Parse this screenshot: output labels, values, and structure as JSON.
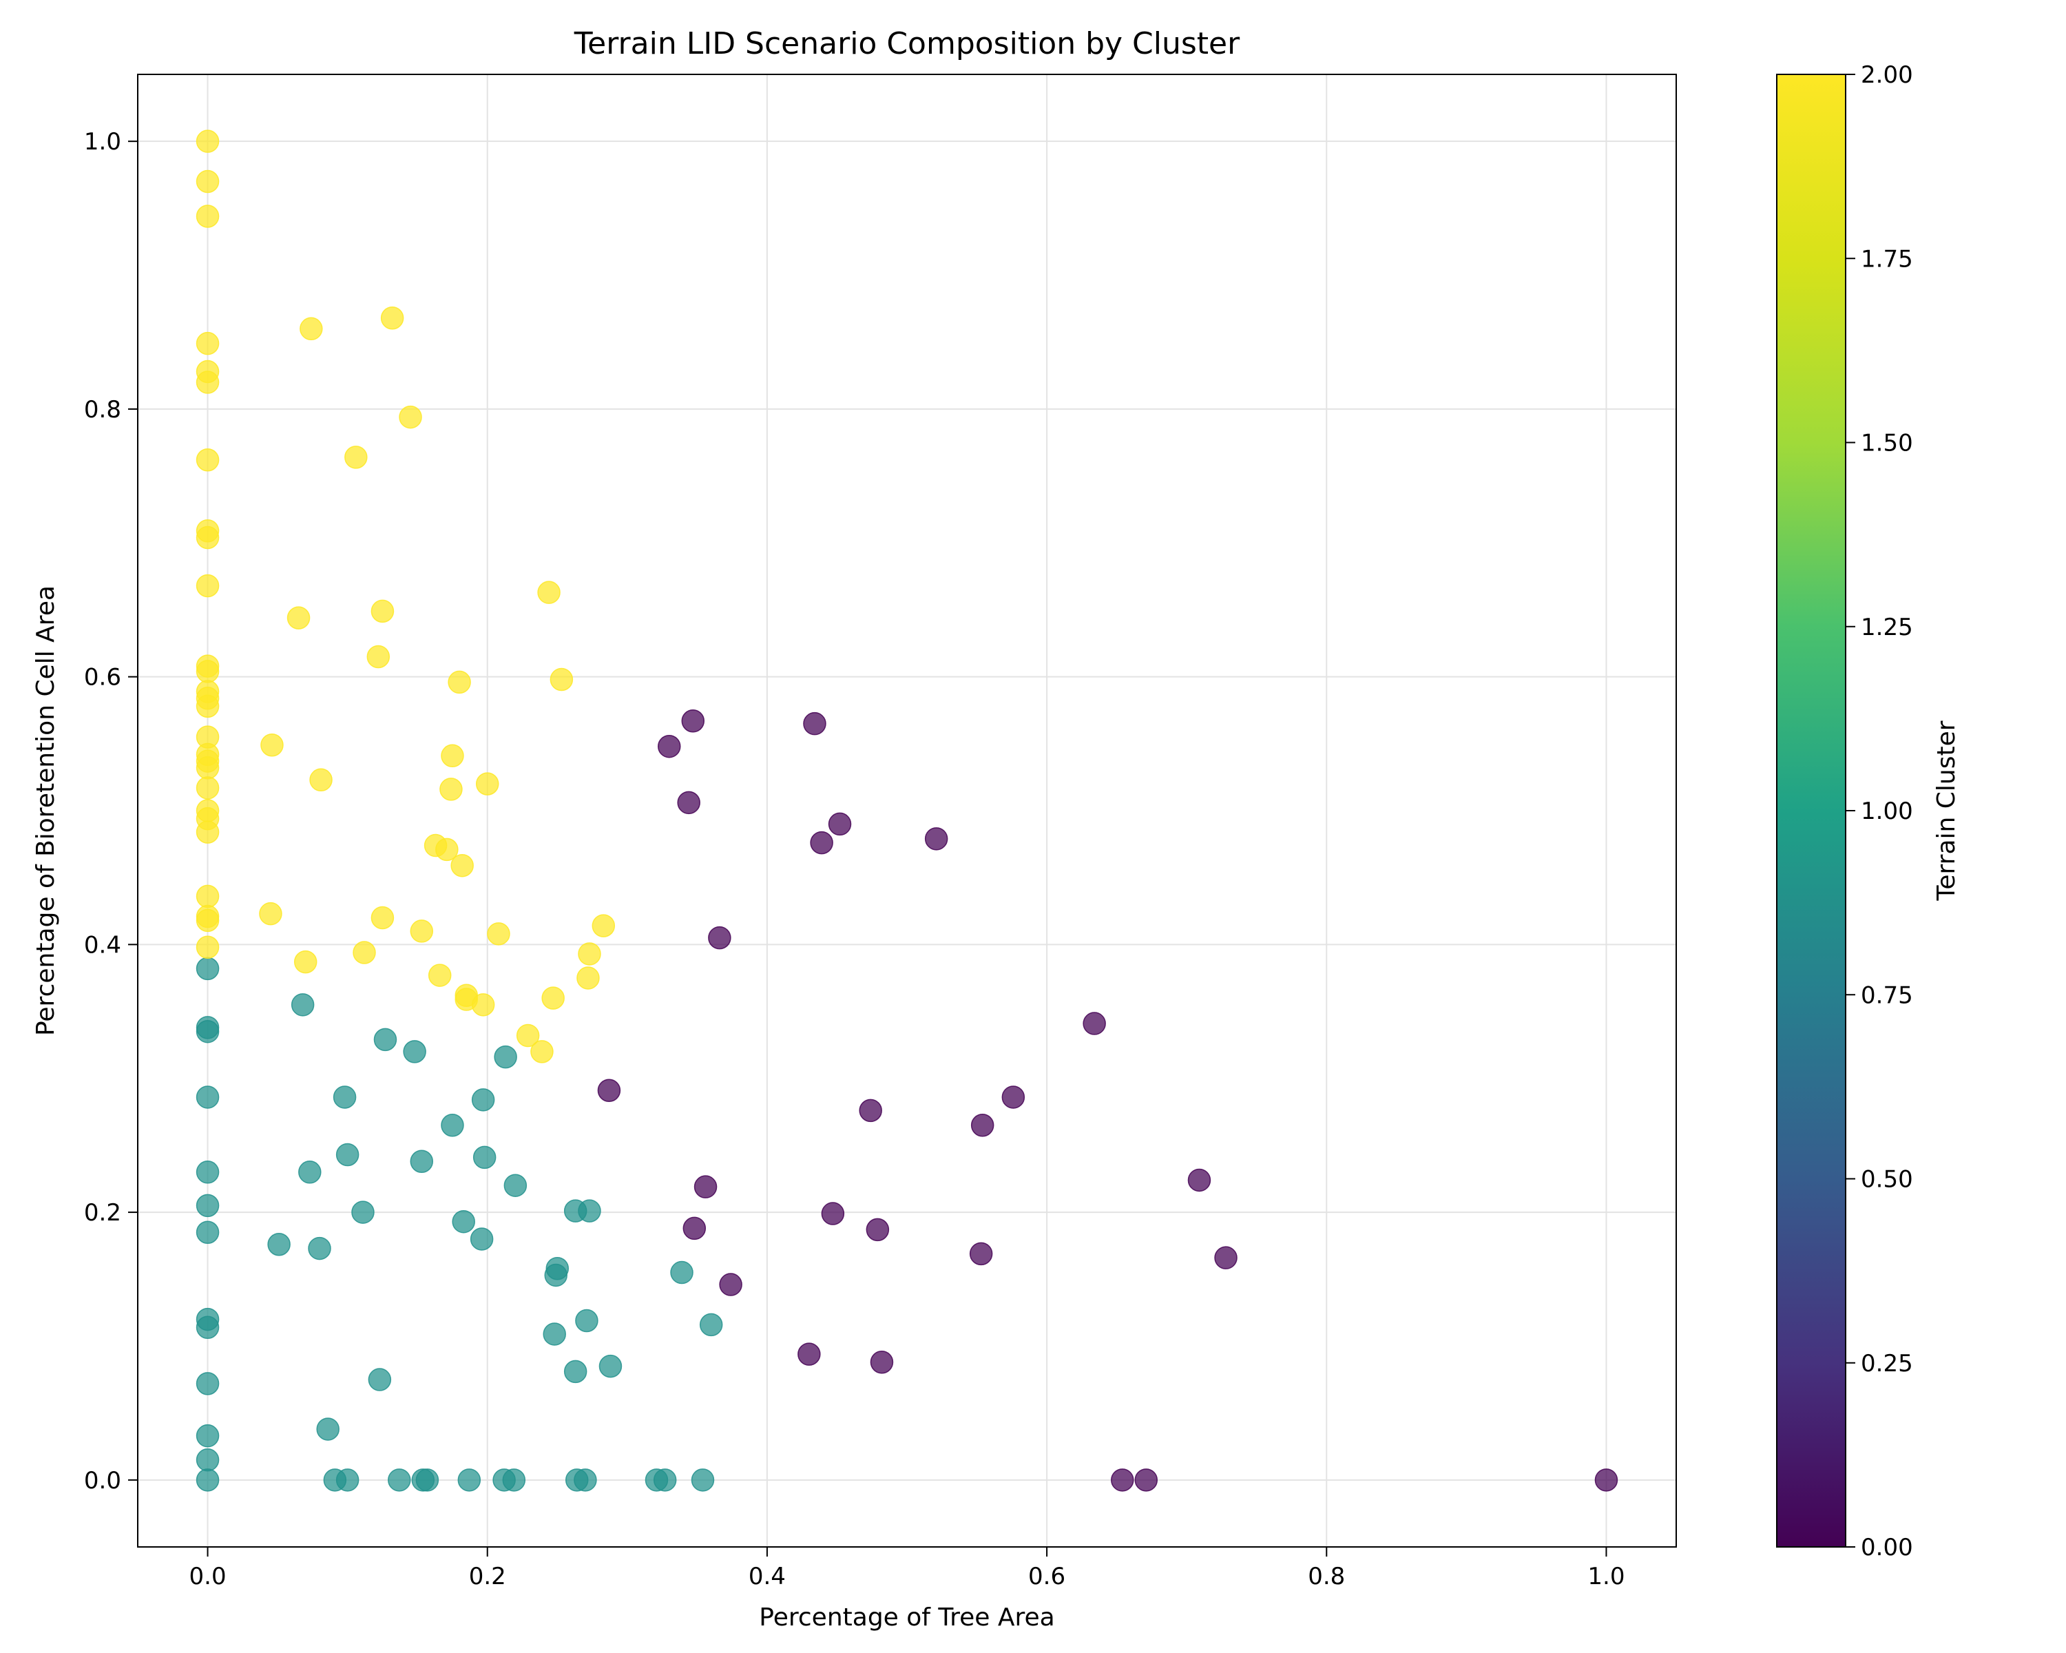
{
  "chart_data": {
    "type": "scatter",
    "title": "Terrain LID Scenario Composition by Cluster",
    "xlabel": "Percentage of Tree Area",
    "ylabel": "Percentage of Bioretention Cell Area",
    "xlim": [
      -0.05,
      1.05
    ],
    "ylim": [
      -0.05,
      1.05
    ],
    "xticks": [
      "0.0",
      "0.2",
      "0.4",
      "0.6",
      "0.8",
      "1.0"
    ],
    "yticks": [
      "0.0",
      "0.2",
      "0.4",
      "0.6",
      "0.8",
      "1.0"
    ],
    "grid": true,
    "colorbar": {
      "label": "Terrain Cluster",
      "range": [
        0.0,
        2.0
      ],
      "ticks": [
        "0.00",
        "0.25",
        "0.50",
        "0.75",
        "1.00",
        "1.25",
        "1.50",
        "1.75",
        "2.00"
      ],
      "colormap": "viridis",
      "colors": [
        "#440154",
        "#3b528b",
        "#21918c",
        "#5ec962",
        "#fde725"
      ]
    },
    "series": [
      {
        "cluster": 0,
        "color": "#440154",
        "points": [
          [
            0.33,
            0.548
          ],
          [
            0.347,
            0.567
          ],
          [
            0.434,
            0.565
          ],
          [
            0.344,
            0.506
          ],
          [
            0.452,
            0.49
          ],
          [
            0.439,
            0.476
          ],
          [
            0.521,
            0.479
          ],
          [
            0.366,
            0.405
          ],
          [
            0.634,
            0.341
          ],
          [
            0.287,
            0.291
          ],
          [
            0.474,
            0.276
          ],
          [
            0.576,
            0.286
          ],
          [
            0.554,
            0.265
          ],
          [
            0.709,
            0.224
          ],
          [
            0.356,
            0.219
          ],
          [
            0.447,
            0.199
          ],
          [
            0.348,
            0.188
          ],
          [
            0.479,
            0.187
          ],
          [
            0.553,
            0.169
          ],
          [
            0.728,
            0.166
          ],
          [
            0.374,
            0.146
          ],
          [
            0.43,
            0.094
          ],
          [
            0.482,
            0.088
          ],
          [
            0.654,
            0.0
          ],
          [
            0.671,
            0.0
          ],
          [
            1.0,
            0.0
          ]
        ]
      },
      {
        "cluster": 1,
        "color": "#21918c",
        "points": [
          [
            0.0,
            0.382
          ],
          [
            0.0,
            0.338
          ],
          [
            0.0,
            0.335
          ],
          [
            0.0,
            0.286
          ],
          [
            0.0,
            0.23
          ],
          [
            0.0,
            0.205
          ],
          [
            0.0,
            0.185
          ],
          [
            0.0,
            0.12
          ],
          [
            0.0,
            0.114
          ],
          [
            0.0,
            0.072
          ],
          [
            0.0,
            0.033
          ],
          [
            0.0,
            0.015
          ],
          [
            0.0,
            0.0
          ],
          [
            0.068,
            0.355
          ],
          [
            0.127,
            0.329
          ],
          [
            0.148,
            0.32
          ],
          [
            0.213,
            0.316
          ],
          [
            0.098,
            0.286
          ],
          [
            0.197,
            0.284
          ],
          [
            0.175,
            0.265
          ],
          [
            0.1,
            0.243
          ],
          [
            0.198,
            0.241
          ],
          [
            0.153,
            0.238
          ],
          [
            0.073,
            0.23
          ],
          [
            0.22,
            0.22
          ],
          [
            0.263,
            0.201
          ],
          [
            0.273,
            0.201
          ],
          [
            0.111,
            0.2
          ],
          [
            0.183,
            0.193
          ],
          [
            0.196,
            0.18
          ],
          [
            0.051,
            0.176
          ],
          [
            0.08,
            0.173
          ],
          [
            0.25,
            0.158
          ],
          [
            0.249,
            0.153
          ],
          [
            0.339,
            0.155
          ],
          [
            0.271,
            0.119
          ],
          [
            0.36,
            0.116
          ],
          [
            0.248,
            0.109
          ],
          [
            0.288,
            0.085
          ],
          [
            0.263,
            0.081
          ],
          [
            0.123,
            0.075
          ],
          [
            0.086,
            0.038
          ],
          [
            0.091,
            0.0
          ],
          [
            0.1,
            0.0
          ],
          [
            0.137,
            0.0
          ],
          [
            0.154,
            0.0
          ],
          [
            0.157,
            0.0
          ],
          [
            0.187,
            0.0
          ],
          [
            0.212,
            0.0
          ],
          [
            0.219,
            0.0
          ],
          [
            0.264,
            0.0
          ],
          [
            0.27,
            0.0
          ],
          [
            0.321,
            0.0
          ],
          [
            0.327,
            0.0
          ],
          [
            0.354,
            0.0
          ]
        ]
      },
      {
        "cluster": 2,
        "color": "#fde725",
        "points": [
          [
            0.0,
            1.0
          ],
          [
            0.0,
            0.97
          ],
          [
            0.0,
            0.944
          ],
          [
            0.0,
            0.849
          ],
          [
            0.0,
            0.828
          ],
          [
            0.0,
            0.82
          ],
          [
            0.0,
            0.762
          ],
          [
            0.0,
            0.709
          ],
          [
            0.0,
            0.704
          ],
          [
            0.0,
            0.668
          ],
          [
            0.0,
            0.608
          ],
          [
            0.0,
            0.604
          ],
          [
            0.0,
            0.589
          ],
          [
            0.0,
            0.584
          ],
          [
            0.0,
            0.578
          ],
          [
            0.0,
            0.555
          ],
          [
            0.0,
            0.542
          ],
          [
            0.0,
            0.537
          ],
          [
            0.0,
            0.532
          ],
          [
            0.0,
            0.517
          ],
          [
            0.0,
            0.5
          ],
          [
            0.0,
            0.494
          ],
          [
            0.0,
            0.484
          ],
          [
            0.0,
            0.436
          ],
          [
            0.0,
            0.421
          ],
          [
            0.0,
            0.418
          ],
          [
            0.0,
            0.398
          ],
          [
            0.074,
            0.86
          ],
          [
            0.132,
            0.868
          ],
          [
            0.145,
            0.794
          ],
          [
            0.106,
            0.764
          ],
          [
            0.244,
            0.663
          ],
          [
            0.065,
            0.644
          ],
          [
            0.125,
            0.649
          ],
          [
            0.122,
            0.615
          ],
          [
            0.18,
            0.596
          ],
          [
            0.253,
            0.598
          ],
          [
            0.046,
            0.549
          ],
          [
            0.175,
            0.541
          ],
          [
            0.081,
            0.523
          ],
          [
            0.174,
            0.516
          ],
          [
            0.2,
            0.52
          ],
          [
            0.163,
            0.474
          ],
          [
            0.171,
            0.471
          ],
          [
            0.182,
            0.459
          ],
          [
            0.045,
            0.423
          ],
          [
            0.125,
            0.42
          ],
          [
            0.153,
            0.41
          ],
          [
            0.283,
            0.414
          ],
          [
            0.208,
            0.408
          ],
          [
            0.112,
            0.394
          ],
          [
            0.273,
            0.393
          ],
          [
            0.07,
            0.387
          ],
          [
            0.166,
            0.377
          ],
          [
            0.272,
            0.375
          ],
          [
            0.185,
            0.362
          ],
          [
            0.185,
            0.359
          ],
          [
            0.197,
            0.355
          ],
          [
            0.247,
            0.36
          ],
          [
            0.229,
            0.332
          ],
          [
            0.239,
            0.32
          ]
        ]
      }
    ]
  }
}
